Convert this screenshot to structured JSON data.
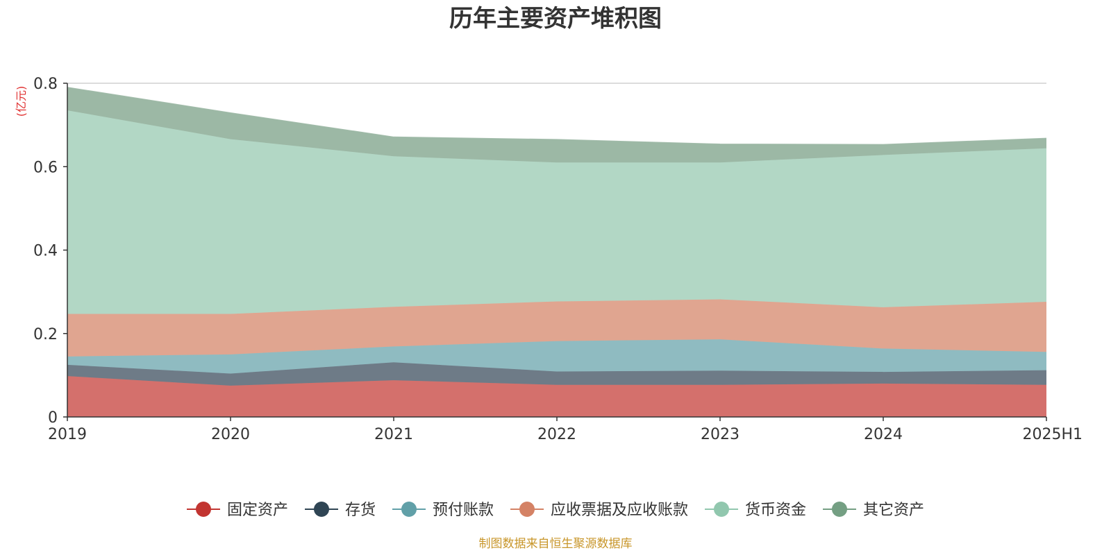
{
  "chart_data": {
    "type": "area",
    "stacked": true,
    "title": "历年主要资产堆积图",
    "unit": "(亿元)",
    "x": [
      "2019",
      "2020",
      "2021",
      "2022",
      "2023",
      "2024",
      "2025H1"
    ],
    "ylim": [
      0,
      0.8
    ],
    "yticks": [
      "0",
      "0.2",
      "0.4",
      "0.6",
      "0.8"
    ],
    "grid": true,
    "legend_position": "bottom",
    "series": [
      {
        "name": "固定资产",
        "color": "#c23531",
        "fill": "#d4706c",
        "values": [
          0.098,
          0.075,
          0.088,
          0.077,
          0.077,
          0.08,
          0.077
        ]
      },
      {
        "name": "存货",
        "color": "#2f4554",
        "fill": "#6e7b87",
        "values": [
          0.027,
          0.029,
          0.043,
          0.032,
          0.034,
          0.028,
          0.035
        ]
      },
      {
        "name": "预付账款",
        "color": "#61a0a8",
        "fill": "#8fbbc1",
        "values": [
          0.02,
          0.046,
          0.038,
          0.073,
          0.075,
          0.056,
          0.044
        ]
      },
      {
        "name": "应收票据及应收账款",
        "color": "#d48265",
        "fill": "#e0a590",
        "values": [
          0.102,
          0.097,
          0.095,
          0.095,
          0.096,
          0.099,
          0.12
        ]
      },
      {
        "name": "货币资金",
        "color": "#91c7ae",
        "fill": "#b2d7c5",
        "values": [
          0.488,
          0.419,
          0.361,
          0.333,
          0.328,
          0.365,
          0.368
        ]
      },
      {
        "name": "其它资产",
        "color": "#749f83",
        "fill": "#9cb8a5",
        "values": [
          0.055,
          0.063,
          0.046,
          0.055,
          0.044,
          0.025,
          0.024
        ]
      }
    ]
  },
  "footer": {
    "source": "制图数据来自恒生聚源数据库"
  }
}
